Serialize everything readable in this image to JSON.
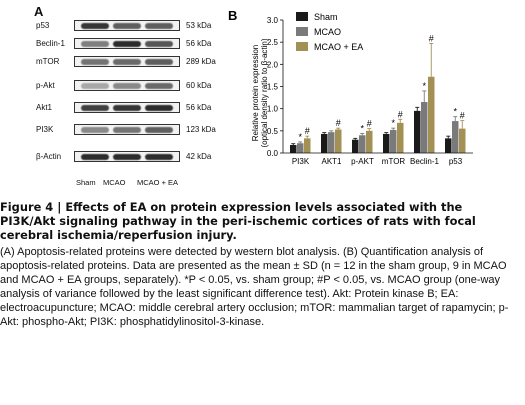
{
  "panel_a": {
    "letter": "A",
    "blots": [
      {
        "protein": "p53",
        "kda": "53 kDa",
        "intensity": [
          0.9,
          0.7,
          0.7
        ]
      },
      {
        "protein": "Beclin-1",
        "kda": "56 kDa",
        "intensity": [
          0.55,
          0.95,
          0.75
        ]
      },
      {
        "protein": "mTOR",
        "kda": "289 kDa",
        "intensity": [
          0.6,
          0.65,
          0.7
        ]
      },
      {
        "protein": "p-Akt",
        "kda": "60 kDa",
        "intensity": [
          0.35,
          0.5,
          0.65
        ]
      },
      {
        "protein": "Akt1",
        "kda": "56 kDa",
        "intensity": [
          0.85,
          0.9,
          0.95
        ]
      },
      {
        "protein": "PI3K",
        "kda": "123 kDa",
        "intensity": [
          0.5,
          0.6,
          0.7
        ]
      },
      {
        "protein": "β-Actin",
        "kda": "42 kDa",
        "intensity": [
          0.95,
          0.95,
          0.95
        ]
      }
    ],
    "lanes": [
      "Sham",
      "MCAO",
      "MCAO + EA"
    ]
  },
  "chart_data": {
    "type": "bar",
    "panel_letter": "B",
    "categories": [
      "PI3K",
      "AKT1",
      "p-AKT",
      "mTOR",
      "Beclin-1",
      "p53"
    ],
    "series": [
      {
        "name": "Sham",
        "color": "#1a1a1a",
        "values": [
          0.18,
          0.43,
          0.3,
          0.43,
          0.95,
          0.33
        ],
        "err": [
          0.03,
          0.03,
          0.03,
          0.03,
          0.08,
          0.05
        ]
      },
      {
        "name": "MCAO",
        "color": "#7a7a7a",
        "values": [
          0.22,
          0.47,
          0.4,
          0.52,
          1.15,
          0.72
        ],
        "err": [
          0.03,
          0.03,
          0.04,
          0.04,
          0.25,
          0.1
        ]
      },
      {
        "name": "MCAO + EA",
        "color": "#a39054",
        "values": [
          0.33,
          0.53,
          0.5,
          0.68,
          1.72,
          0.55
        ],
        "err": [
          0.05,
          0.03,
          0.05,
          0.08,
          0.75,
          0.18
        ]
      }
    ],
    "significance": [
      {
        "category": "PI3K",
        "series": "MCAO",
        "mark": "*"
      },
      {
        "category": "PI3K",
        "series": "MCAO + EA",
        "mark": "#"
      },
      {
        "category": "AKT1",
        "series": "MCAO + EA",
        "mark": "#"
      },
      {
        "category": "p-AKT",
        "series": "MCAO",
        "mark": "*"
      },
      {
        "category": "p-AKT",
        "series": "MCAO + EA",
        "mark": "#"
      },
      {
        "category": "mTOR",
        "series": "MCAO",
        "mark": "*"
      },
      {
        "category": "mTOR",
        "series": "MCAO + EA",
        "mark": "#"
      },
      {
        "category": "Beclin-1",
        "series": "MCAO",
        "mark": "*"
      },
      {
        "category": "Beclin-1",
        "series": "MCAO + EA",
        "mark": "#"
      },
      {
        "category": "p53",
        "series": "MCAO",
        "mark": "*"
      },
      {
        "category": "p53",
        "series": "MCAO + EA",
        "mark": "#"
      }
    ],
    "ylabel": "Relative protein expression",
    "ylabel2": "(optical density ratio to β-actin)",
    "ylim": [
      0,
      3.0
    ],
    "yticks": [
      "0.0",
      "0.5",
      "1.0",
      "1.5",
      "2.0",
      "2.5",
      "3.0"
    ],
    "legend": "top-left"
  },
  "caption": {
    "figure_label": "Figure 4",
    "separator": "|",
    "title": "Effects of EA on protein expression levels associated with the PI3K/Akt signaling pathway in the peri-ischemic cortices of rats with focal cerebral ischemia/reperfusion injury.",
    "body": "(A) Apoptosis-related proteins were detected by western blot analysis. (B) Quantification analysis of apoptosis-related proteins. Data are presented as the mean ± SD (n = 12 in the sham group, 9 in MCAO and MCAO + EA groups, separately). *P < 0.05, vs. sham group; #P < 0.05, vs. MCAO group (one-way analysis of variance followed by the least significant difference test). Akt: Protein kinase B; EA: electroacupuncture; MCAO: middle cerebral artery occlusion; mTOR: mammalian target of rapamycin; p-Akt: phospho-Akt; PI3K: phosphatidylinositol-3-kinase."
  }
}
